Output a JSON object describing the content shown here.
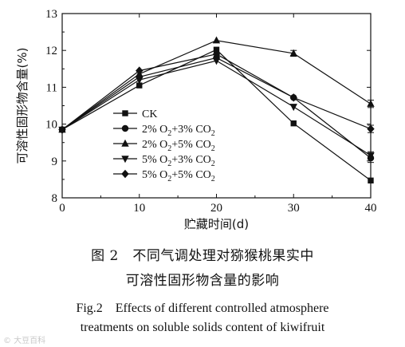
{
  "chart_data": {
    "type": "line",
    "xlabel": "贮藏时间(d)",
    "ylabel": "可溶性固形物含量(%)",
    "x": [
      0,
      10,
      20,
      30,
      40
    ],
    "xticks": [
      0,
      10,
      20,
      30,
      40
    ],
    "yticks": [
      8,
      9,
      10,
      11,
      12,
      13
    ],
    "xlim": [
      0,
      40
    ],
    "ylim": [
      8,
      13
    ],
    "grid": false,
    "legend_position": "bottom-left",
    "series": [
      {
        "name": "CK",
        "legend_parts": [
          "CK"
        ],
        "marker": "square",
        "values": [
          9.85,
          11.05,
          12.02,
          10.02,
          8.47
        ],
        "errors": [
          0,
          0,
          0,
          0,
          0
        ]
      },
      {
        "name": "2% O2+3% CO2",
        "legend_parts": [
          "2% O",
          "2",
          "+3% CO",
          "2"
        ],
        "marker": "circle",
        "values": [
          9.85,
          11.28,
          11.8,
          10.72,
          9.08
        ],
        "errors": [
          0,
          0,
          0,
          0,
          0.12
        ]
      },
      {
        "name": "2% O2+5% CO2",
        "legend_parts": [
          "2% O",
          "2",
          "+5% CO",
          "2"
        ],
        "marker": "triangle-up",
        "values": [
          9.85,
          11.36,
          12.27,
          11.92,
          10.55
        ],
        "errors": [
          0,
          0,
          0,
          0.08,
          0.1
        ]
      },
      {
        "name": "5% O2+3% CO2",
        "legend_parts": [
          "5% O",
          "2",
          "+3% CO",
          "2"
        ],
        "marker": "triangle-down",
        "values": [
          9.85,
          11.2,
          11.72,
          10.47,
          9.15
        ],
        "errors": [
          0,
          0,
          0,
          0,
          0.1
        ]
      },
      {
        "name": "5% O2+5% CO2",
        "legend_parts": [
          "5% O",
          "2",
          "+5% CO",
          "2"
        ],
        "marker": "diamond",
        "values": [
          9.85,
          11.45,
          11.9,
          10.72,
          9.87
        ],
        "errors": [
          0,
          0,
          0,
          0,
          0.1
        ]
      }
    ]
  },
  "caption": {
    "cn_line1": "图 2　不同气调处理对猕猴桃果实中",
    "cn_line2": "可溶性固形物含量的影响",
    "en_line1": "Fig.2　Effects of different controlled atmosphere",
    "en_line2": "treatments on soluble solids content of kiwifruit"
  },
  "watermark": "© 大豆百科"
}
